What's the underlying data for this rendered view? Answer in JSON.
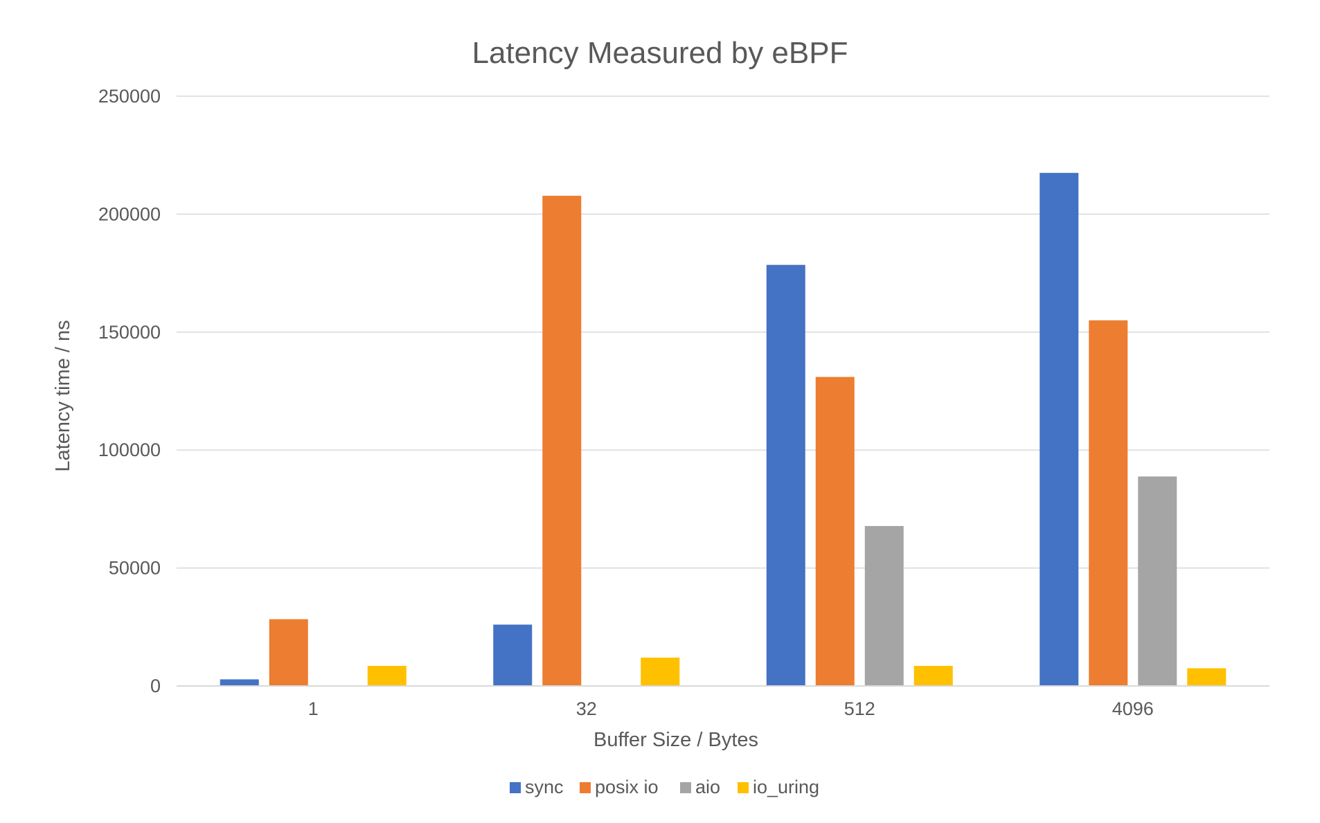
{
  "chart_data": {
    "type": "bar",
    "title": "Latency Measured by eBPF",
    "xlabel": "Buffer Size / Bytes",
    "ylabel": "Latency time / ns",
    "categories": [
      "1",
      "32",
      "512",
      "4096"
    ],
    "ylim": [
      0,
      250000
    ],
    "yticks": [
      0,
      50000,
      100000,
      150000,
      200000,
      250000
    ],
    "ytick_labels": [
      "0",
      "50000",
      "100000",
      "150000",
      "200000",
      "250000"
    ],
    "grid": true,
    "legend_position": "bottom",
    "series": [
      {
        "name": "sync",
        "color": "#4472c4",
        "values": [
          2800,
          26000,
          178500,
          217500
        ]
      },
      {
        "name": "posix io",
        "color": "#ed7d31",
        "values": [
          28300,
          207800,
          131000,
          155000
        ]
      },
      {
        "name": "aio",
        "color": "#a5a5a5",
        "values": [
          0,
          0,
          67800,
          88800
        ]
      },
      {
        "name": "io_uring",
        "color": "#ffc000",
        "values": [
          8500,
          12000,
          8500,
          7500
        ]
      }
    ]
  }
}
